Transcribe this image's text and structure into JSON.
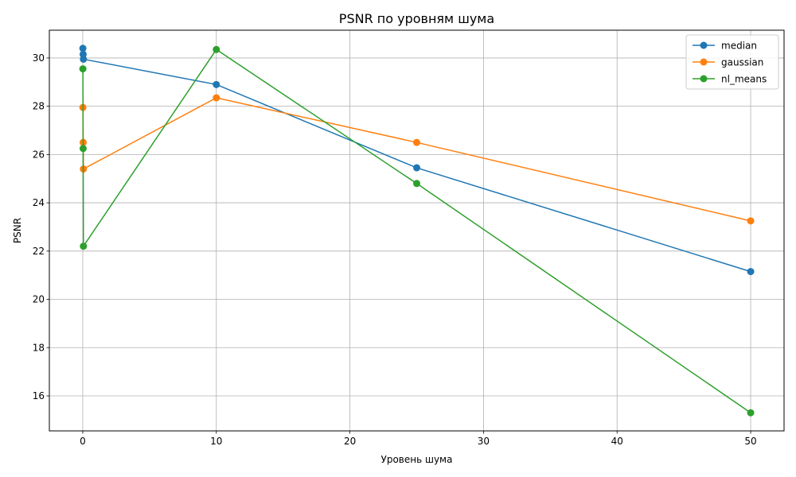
{
  "chart_data": {
    "type": "line",
    "title": "PSNR по уровням шума",
    "xlabel": "Уровень шума",
    "ylabel": "PSNR",
    "xlim": [
      -2.5,
      52.5
    ],
    "ylim": [
      14.55,
      31.15
    ],
    "xticks": [
      0,
      10,
      20,
      30,
      40,
      50
    ],
    "yticks": [
      16,
      18,
      20,
      22,
      24,
      26,
      28,
      30
    ],
    "grid": true,
    "legend_position": "top-right",
    "series": [
      {
        "name": "median",
        "color": "#1f77b4",
        "x": [
          0.01,
          0.03,
          0.05,
          10,
          25,
          50
        ],
        "y": [
          30.4,
          30.15,
          29.95,
          28.9,
          25.45,
          21.15
        ]
      },
      {
        "name": "gaussian",
        "color": "#ff7f0e",
        "x": [
          0.01,
          0.03,
          0.05,
          10,
          25,
          50
        ],
        "y": [
          27.95,
          26.5,
          25.4,
          28.35,
          26.5,
          23.25
        ]
      },
      {
        "name": "nl_means",
        "color": "#2ca02c",
        "x": [
          0.01,
          0.03,
          0.05,
          10,
          25,
          50
        ],
        "y": [
          29.55,
          26.25,
          22.2,
          30.35,
          24.8,
          15.3
        ]
      }
    ]
  }
}
